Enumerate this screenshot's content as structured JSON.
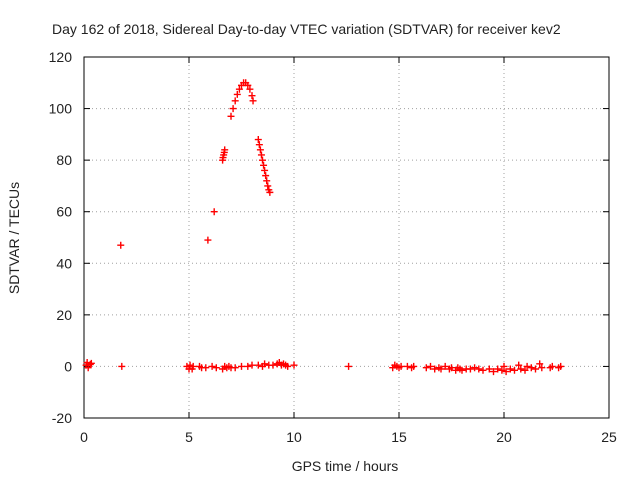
{
  "chart_data": {
    "type": "scatter",
    "title": "Day 162 of 2018, Sidereal Day-to-day VTEC variation (SDTVAR) for receiver kev2",
    "xlabel": "GPS time / hours",
    "ylabel": "SDTVAR / TECUs",
    "xlim": [
      0,
      25
    ],
    "ylim": [
      -20,
      120
    ],
    "xticks": [
      "0",
      "5",
      "10",
      "15",
      "20",
      "25"
    ],
    "yticks": [
      "-20",
      "0",
      "20",
      "40",
      "60",
      "80",
      "100",
      "120"
    ],
    "grid": true,
    "marker": "plus",
    "color": "#ff0000",
    "series": [
      {
        "name": "SDTVAR",
        "points": [
          [
            0.1,
            0.5
          ],
          [
            0.15,
            1.5
          ],
          [
            0.2,
            -0.5
          ],
          [
            0.3,
            0.8
          ],
          [
            0.35,
            1.2
          ],
          [
            1.75,
            47
          ],
          [
            1.8,
            0
          ],
          [
            4.9,
            0
          ],
          [
            5.0,
            -1
          ],
          [
            5.05,
            0.5
          ],
          [
            5.15,
            -1
          ],
          [
            5.2,
            0
          ],
          [
            5.5,
            0
          ],
          [
            5.6,
            -0.5
          ],
          [
            5.8,
            -0.5
          ],
          [
            5.9,
            49
          ],
          [
            6.2,
            60
          ],
          [
            6.1,
            0
          ],
          [
            6.3,
            -0.5
          ],
          [
            6.6,
            80
          ],
          [
            6.62,
            81
          ],
          [
            6.65,
            82
          ],
          [
            6.68,
            83
          ],
          [
            6.7,
            84
          ],
          [
            6.6,
            -1
          ],
          [
            6.7,
            0
          ],
          [
            7.0,
            97
          ],
          [
            7.1,
            100
          ],
          [
            7.2,
            103
          ],
          [
            7.3,
            105.5
          ],
          [
            7.4,
            107.5
          ],
          [
            7.5,
            109
          ],
          [
            7.6,
            110
          ],
          [
            7.7,
            110
          ],
          [
            7.8,
            109
          ],
          [
            7.9,
            107.5
          ],
          [
            8.0,
            105
          ],
          [
            8.05,
            103
          ],
          [
            6.8,
            -0.5
          ],
          [
            6.9,
            0
          ],
          [
            7.0,
            -0.5
          ],
          [
            7.2,
            -0.5
          ],
          [
            7.5,
            0
          ],
          [
            7.8,
            0
          ],
          [
            8.0,
            0.5
          ],
          [
            8.3,
            88
          ],
          [
            8.35,
            86
          ],
          [
            8.4,
            84
          ],
          [
            8.45,
            82
          ],
          [
            8.5,
            80
          ],
          [
            8.55,
            78
          ],
          [
            8.6,
            76
          ],
          [
            8.65,
            74
          ],
          [
            8.7,
            72
          ],
          [
            8.75,
            70
          ],
          [
            8.8,
            68.5
          ],
          [
            8.85,
            67.5
          ],
          [
            8.3,
            0.5
          ],
          [
            8.5,
            0
          ],
          [
            8.6,
            1
          ],
          [
            8.8,
            0.5
          ],
          [
            9.0,
            0.5
          ],
          [
            9.2,
            1
          ],
          [
            9.3,
            1.5
          ],
          [
            9.4,
            0.5
          ],
          [
            9.5,
            1
          ],
          [
            9.6,
            0.5
          ],
          [
            9.7,
            0
          ],
          [
            10.0,
            0.5
          ],
          [
            12.6,
            0
          ],
          [
            14.7,
            -0.5
          ],
          [
            14.8,
            0.5
          ],
          [
            14.9,
            0
          ],
          [
            15.0,
            -0.5
          ],
          [
            15.1,
            0
          ],
          [
            15.4,
            0
          ],
          [
            15.6,
            -0.5
          ],
          [
            15.7,
            0
          ],
          [
            16.3,
            -0.5
          ],
          [
            16.5,
            0
          ],
          [
            16.7,
            -1
          ],
          [
            16.9,
            -0.5
          ],
          [
            17.0,
            -1
          ],
          [
            17.2,
            0
          ],
          [
            17.4,
            -1
          ],
          [
            17.5,
            -0.5
          ],
          [
            17.7,
            -1.5
          ],
          [
            17.8,
            -0.5
          ],
          [
            17.9,
            -1
          ],
          [
            18.0,
            -1.5
          ],
          [
            18.2,
            -1
          ],
          [
            18.4,
            -1
          ],
          [
            18.6,
            -0.5
          ],
          [
            18.8,
            -1
          ],
          [
            19.0,
            -1.5
          ],
          [
            19.3,
            -1
          ],
          [
            19.5,
            -2
          ],
          [
            19.7,
            -1
          ],
          [
            19.9,
            -1.5
          ],
          [
            20.0,
            0
          ],
          [
            20.1,
            -2
          ],
          [
            20.3,
            -1
          ],
          [
            20.5,
            -1.5
          ],
          [
            20.7,
            0.5
          ],
          [
            20.8,
            -1
          ],
          [
            21.0,
            -1.5
          ],
          [
            21.1,
            0
          ],
          [
            21.3,
            -0.5
          ],
          [
            21.5,
            -1
          ],
          [
            21.7,
            1
          ],
          [
            21.8,
            -0.5
          ],
          [
            22.2,
            -0.5
          ],
          [
            22.3,
            0
          ],
          [
            22.6,
            -0.5
          ],
          [
            22.7,
            0
          ]
        ]
      }
    ]
  }
}
